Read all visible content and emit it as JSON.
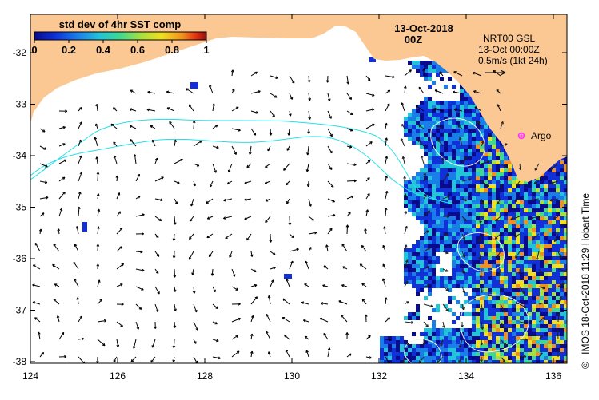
{
  "title": {
    "date": "13-Oct-2018",
    "time": "00Z"
  },
  "colorbar": {
    "label": "std dev of 4hr SST comp",
    "ticks": [
      "0",
      "0.2",
      "0.4",
      "0.6",
      "0.8",
      "1"
    ],
    "colors": [
      "#0a0a8c",
      "#1030d8",
      "#1a7ee8",
      "#22c4d8",
      "#40d890",
      "#a8e040",
      "#f0e020",
      "#f09020",
      "#e03010",
      "#901010"
    ]
  },
  "legend": {
    "line1": "NRT00 GSL",
    "line2": "13-Oct 00:00Z",
    "line3": "0.5m/s (1kt 24h)"
  },
  "argo": {
    "label": "Argo",
    "color": "#ff33ff"
  },
  "axes": {
    "x_ticks": [
      "124",
      "126",
      "128",
      "130",
      "132",
      "134",
      "136"
    ],
    "y_ticks": [
      "-32",
      "-33",
      "-34",
      "-35",
      "-36",
      "-37",
      "-38"
    ]
  },
  "credit": {
    "symbol": "©",
    "text": "IMOS 18-Oct-2018 11:29 Hobart Time"
  },
  "colors": {
    "land": "#fbc894",
    "ocean_blank": "#ffffff",
    "contour": "#22e0e8",
    "eddy_contour": "#e8f4e8"
  }
}
